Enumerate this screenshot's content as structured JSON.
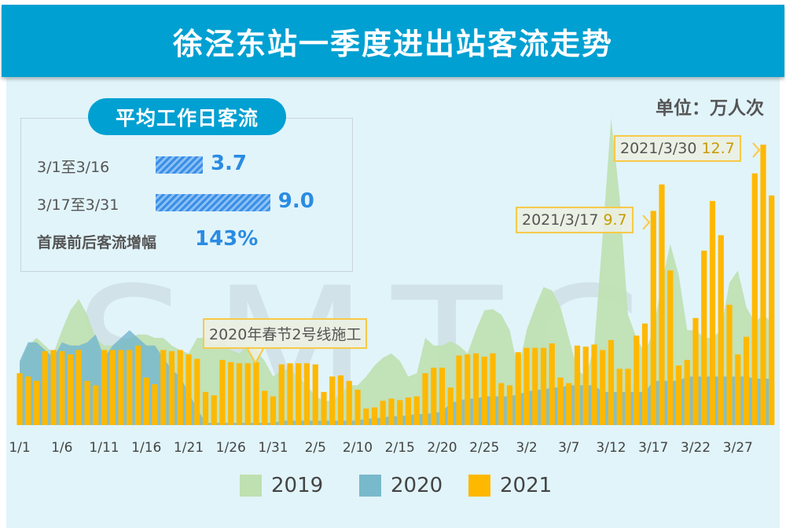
{
  "title": "徐泾东站一季度进出站客流走势",
  "unit_label": "单位：万人次",
  "watermark": "SMTC",
  "summary": {
    "title": "平均工作日客流",
    "rows": [
      {
        "label": "3/1至3/16",
        "value": 3.7,
        "value_text": "3.7"
      },
      {
        "label": "3/17至3/31",
        "value": 9.0,
        "value_text": "9.0"
      }
    ],
    "growth_label": "首展前后客流增幅",
    "growth_value": "143%"
  },
  "colors": {
    "header": "#00a0d2",
    "background": "#e1f4fa",
    "2019": "#bfe0b0",
    "2020": "#78b9cc",
    "2021": "#ffb800",
    "highlight": "#2a8be3"
  },
  "chart_data": {
    "type": "bar+area",
    "ylim": [
      0,
      14
    ],
    "grid": false,
    "legend_position": "bottom",
    "x_tick_labels": [
      "1/1",
      "1/6",
      "1/11",
      "1/16",
      "1/21",
      "1/26",
      "1/31",
      "2/5",
      "2/10",
      "2/15",
      "2/20",
      "2/25",
      "3/2",
      "3/7",
      "3/12",
      "3/17",
      "3/22",
      "3/27"
    ],
    "start": "1/1",
    "days": 90,
    "series": [
      {
        "name": "2019",
        "type": "area",
        "values": [
          2.7,
          3.6,
          3.95,
          3.6,
          3.25,
          4.3,
          5.2,
          5.7,
          5.0,
          3.95,
          3.6,
          3.6,
          3.8,
          3.95,
          4.1,
          4.1,
          3.95,
          3.95,
          3.6,
          3.4,
          3.25,
          3.95,
          3.95,
          3.6,
          3.95,
          3.4,
          3.25,
          3.6,
          3.4,
          2.9,
          2.2,
          2.5,
          2.5,
          2.2,
          1.8,
          1.3,
          1.1,
          1.1,
          1.45,
          1.8,
          1.8,
          2.2,
          2.7,
          3.05,
          3.25,
          2.9,
          2.2,
          2.35,
          3.95,
          3.6,
          3.6,
          3.8,
          3.6,
          3.25,
          4.3,
          5.2,
          5.25,
          5.0,
          4.3,
          2.5,
          4.3,
          5.35,
          6.25,
          6.1,
          5.35,
          3.95,
          2.5,
          2.2,
          3.6,
          8.6,
          13.9,
          10.35,
          5.0,
          3.95,
          3.25,
          4.3,
          6.45,
          8.2,
          6.8,
          4.3,
          4.3,
          3.95,
          3.95,
          4.3,
          6.45,
          7.0,
          5.35,
          4.65,
          5.0,
          4.65
        ]
      },
      {
        "name": "2020",
        "type": "area",
        "values": [
          2.9,
          3.75,
          3.75,
          3.4,
          3.05,
          3.75,
          3.6,
          3.6,
          3.75,
          4.1,
          3.05,
          3.6,
          3.95,
          4.3,
          3.95,
          3.6,
          3.6,
          3.05,
          2.5,
          2.2,
          1.45,
          0.75,
          0.1,
          0.1,
          0.1,
          0.1,
          0.1,
          0.1,
          0.1,
          0.1,
          0.1,
          0.2,
          0.2,
          0.2,
          0.2,
          0.2,
          0.2,
          0.2,
          0.2,
          0.2,
          0.2,
          0.3,
          0.3,
          0.35,
          0.4,
          0.4,
          0.45,
          0.5,
          0.5,
          0.55,
          0.6,
          1.0,
          1.1,
          1.2,
          1.2,
          1.3,
          1.3,
          1.3,
          1.3,
          1.4,
          1.5,
          1.6,
          1.6,
          1.7,
          1.7,
          1.8,
          1.8,
          1.8,
          1.8,
          1.5,
          1.5,
          1.5,
          1.5,
          1.5,
          1.5,
          2.0,
          2.0,
          2.0,
          2.0,
          2.2,
          2.2,
          2.2,
          2.2,
          2.2,
          2.2,
          2.2,
          2.2,
          2.1,
          2.1,
          2.1
        ]
      },
      {
        "name": "2021",
        "type": "bar",
        "values": [
          2.35,
          2.2,
          2.0,
          3.35,
          3.4,
          3.35,
          3.2,
          3.4,
          2.0,
          1.8,
          3.4,
          3.4,
          3.4,
          3.4,
          3.6,
          2.15,
          1.85,
          3.4,
          3.35,
          3.4,
          3.2,
          3.0,
          1.5,
          1.35,
          2.95,
          2.85,
          2.8,
          2.8,
          2.85,
          1.55,
          1.3,
          2.75,
          2.8,
          2.8,
          2.8,
          2.75,
          1.5,
          2.2,
          2.25,
          2.0,
          1.6,
          0.75,
          0.8,
          1.1,
          1.2,
          1.13,
          1.25,
          1.3,
          2.35,
          2.6,
          2.6,
          1.7,
          3.15,
          3.2,
          3.25,
          3.1,
          3.25,
          1.9,
          1.8,
          3.3,
          3.5,
          3.5,
          3.5,
          3.7,
          2.15,
          1.9,
          3.6,
          3.55,
          3.65,
          3.4,
          3.85,
          2.55,
          2.55,
          4.05,
          4.6,
          9.7,
          10.9,
          7.0,
          2.7,
          2.95,
          4.85,
          7.9,
          10.15,
          8.6,
          5.45,
          3.2,
          4.0,
          11.4,
          12.7,
          10.4
        ]
      }
    ],
    "annotations": [
      {
        "text": "2020年春节2号线施工"
      },
      {
        "date": "2021/3/17",
        "value": "9.7"
      },
      {
        "date": "2021/3/30",
        "value": "12.7"
      }
    ]
  }
}
